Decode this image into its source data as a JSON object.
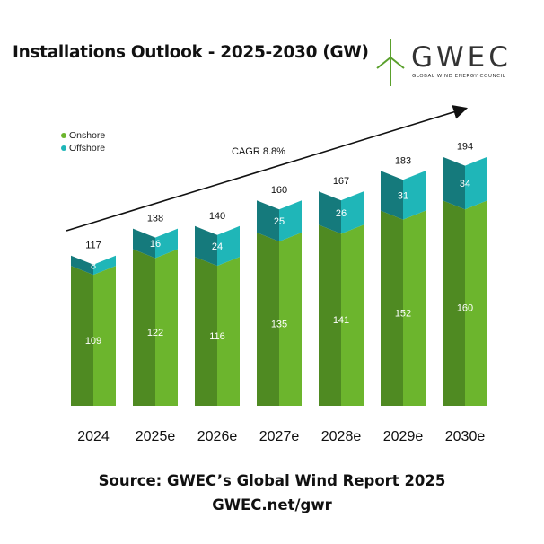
{
  "header": {
    "title": "Installations Outlook - 2025-2030 (GW)"
  },
  "logo": {
    "wordmark": "GWEC",
    "tagline": "GLOBAL WIND ENERGY COUNCIL",
    "icon": "wind-turbine-icon"
  },
  "footer": {
    "source": "Source: GWEC’s Global Wind Report 2025",
    "url": "GWEC.net/gwr"
  },
  "colors": {
    "onshore": "#6cb52d",
    "onshore_dark": "#4f8a22",
    "offshore": "#1fb6b8",
    "offshore_dark": "#157a7c",
    "brand_green": "#5aa02c"
  },
  "chart_data": {
    "type": "bar",
    "stacked": true,
    "categories": [
      "2024",
      "2025e",
      "2026e",
      "2027e",
      "2028e",
      "2029e",
      "2030e"
    ],
    "series": [
      {
        "name": "Onshore",
        "values": [
          109,
          122,
          116,
          135,
          141,
          152,
          160
        ]
      },
      {
        "name": "Offshore",
        "values": [
          8,
          16,
          24,
          25,
          26,
          31,
          34
        ]
      }
    ],
    "totals": [
      117,
      138,
      140,
      160,
      167,
      183,
      194
    ],
    "annotation": "CAGR 8.8%",
    "legend_position": "top-left",
    "ylim": [
      0,
      200
    ],
    "grid": false
  }
}
